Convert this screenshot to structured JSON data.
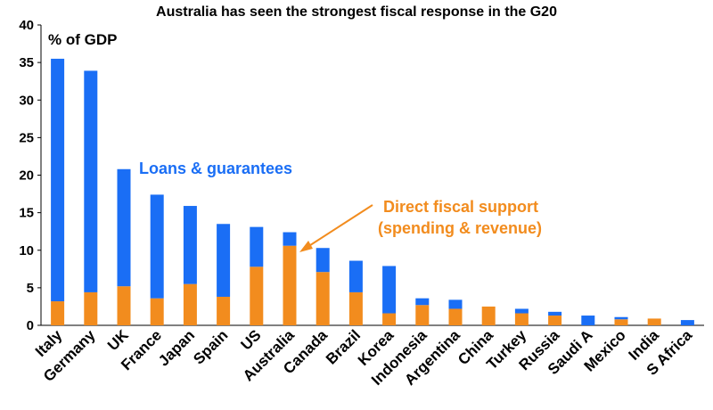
{
  "chart_data": {
    "type": "bar",
    "stacked": true,
    "title": "Australia has seen the strongest fiscal response in the G20",
    "ylabel": "% of GDP",
    "ylim": [
      0,
      40
    ],
    "yticks": [
      0,
      5,
      10,
      15,
      20,
      25,
      30,
      35,
      40
    ],
    "grid": false,
    "categories": [
      "Italy",
      "Germany",
      "UK",
      "France",
      "Japan",
      "Spain",
      "US",
      "Australia",
      "Canada",
      "Brazil",
      "Korea",
      "Indonesia",
      "Argentina",
      "China",
      "Turkey",
      "Russia",
      "Saudi A",
      "Mexico",
      "India",
      "S Africa"
    ],
    "series": [
      {
        "name": "Direct fiscal support (spending & revenue)",
        "color": "#f28c1e",
        "values": [
          3.2,
          4.4,
          5.2,
          3.6,
          5.5,
          3.8,
          7.8,
          10.6,
          7.1,
          4.4,
          1.6,
          2.7,
          2.2,
          2.5,
          1.6,
          1.3,
          0.0,
          0.8,
          0.9,
          0.0
        ]
      },
      {
        "name": "Loans & guarantees",
        "color": "#1a6ef5",
        "values": [
          32.3,
          29.5,
          15.6,
          13.8,
          10.4,
          9.7,
          5.3,
          1.8,
          3.2,
          4.2,
          6.3,
          0.9,
          1.2,
          0.0,
          0.6,
          0.5,
          1.3,
          0.3,
          0.0,
          0.7
        ]
      }
    ],
    "annotations": {
      "loans_label": "Loans & guarantees",
      "direct_label_line1": "Direct fiscal support",
      "direct_label_line2": "(spending & revenue)"
    }
  }
}
